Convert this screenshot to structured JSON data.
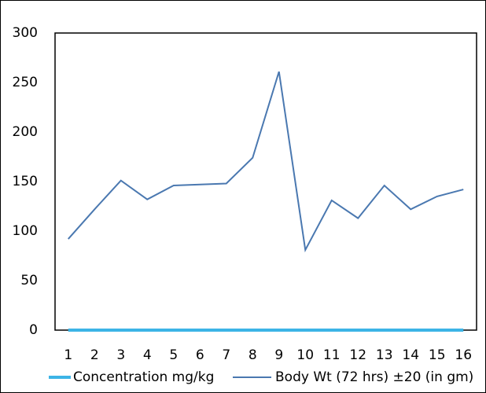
{
  "chart_data": {
    "type": "line",
    "categories": [
      "1",
      "2",
      "3",
      "4",
      "5",
      "6",
      "7",
      "8",
      "9",
      "10",
      "11",
      "12",
      "13",
      "14",
      "15",
      "16"
    ],
    "series": [
      {
        "name": "Concentration mg/kg",
        "color": "#3cb4e6",
        "values": [
          0,
          0,
          0,
          0,
          0,
          0,
          0,
          0,
          0,
          0,
          0,
          0,
          0,
          0,
          0,
          0
        ]
      },
      {
        "name": "Body Wt (72 hrs) ±20 (in gm)",
        "color": "#4a78b0",
        "values": [
          92,
          122,
          151,
          132,
          146,
          147,
          148,
          174,
          261,
          81,
          131,
          113,
          146,
          122,
          135,
          142
        ]
      }
    ],
    "ylim": [
      0,
      300
    ],
    "yticks": [
      0,
      50,
      100,
      150,
      200,
      250,
      300
    ],
    "grid": false
  }
}
